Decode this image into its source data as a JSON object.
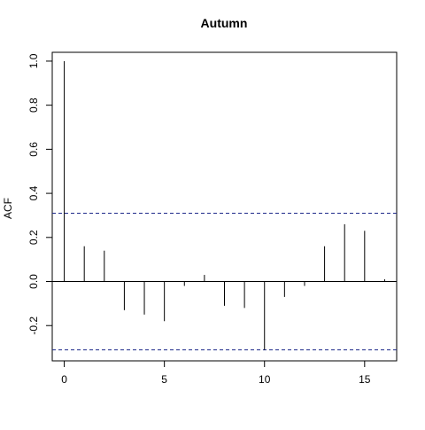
{
  "chart_data": {
    "type": "bar",
    "title": "Autumn",
    "xlabel": "",
    "ylabel": "ACF",
    "x": [
      0,
      1,
      2,
      3,
      4,
      5,
      6,
      7,
      8,
      9,
      10,
      11,
      12,
      13,
      14,
      15,
      16
    ],
    "values": [
      1.0,
      0.16,
      0.14,
      -0.13,
      -0.15,
      -0.18,
      -0.02,
      0.03,
      -0.11,
      -0.12,
      -0.31,
      -0.07,
      -0.02,
      0.16,
      0.26,
      0.23,
      0.01
    ],
    "xlim": [
      -0.6,
      16.6
    ],
    "ylim": [
      -0.36,
      1.04
    ],
    "x_ticks": [
      "0",
      "5",
      "10",
      "15"
    ],
    "x_tick_values": [
      0,
      5,
      10,
      15
    ],
    "y_ticks": [
      "-0.2",
      "0.0",
      "0.2",
      "0.4",
      "0.6",
      "0.8",
      "1.0"
    ],
    "y_tick_values": [
      -0.2,
      0.0,
      0.2,
      0.4,
      0.6,
      0.8,
      1.0
    ],
    "confidence_bound": 0.31,
    "grid": false,
    "colors": {
      "bars": "#000000",
      "bounds": "#1f2a8a"
    }
  }
}
